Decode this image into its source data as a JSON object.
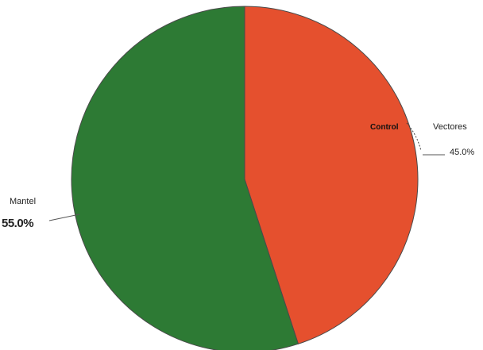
{
  "chart_data": {
    "type": "pie",
    "categories": [
      "Vectores",
      "Mantel"
    ],
    "values": [
      45.0,
      55.0
    ],
    "value_labels": [
      "45.0%",
      "55.0%"
    ],
    "overlap_text": "Control",
    "colors": {
      "Vectores": "#e5502e",
      "Mantel": "#2d7a34",
      "outline": "#4a4a4a"
    },
    "start_angle_deg": 0,
    "direction": "clockwise",
    "title": "",
    "legend": "none"
  }
}
